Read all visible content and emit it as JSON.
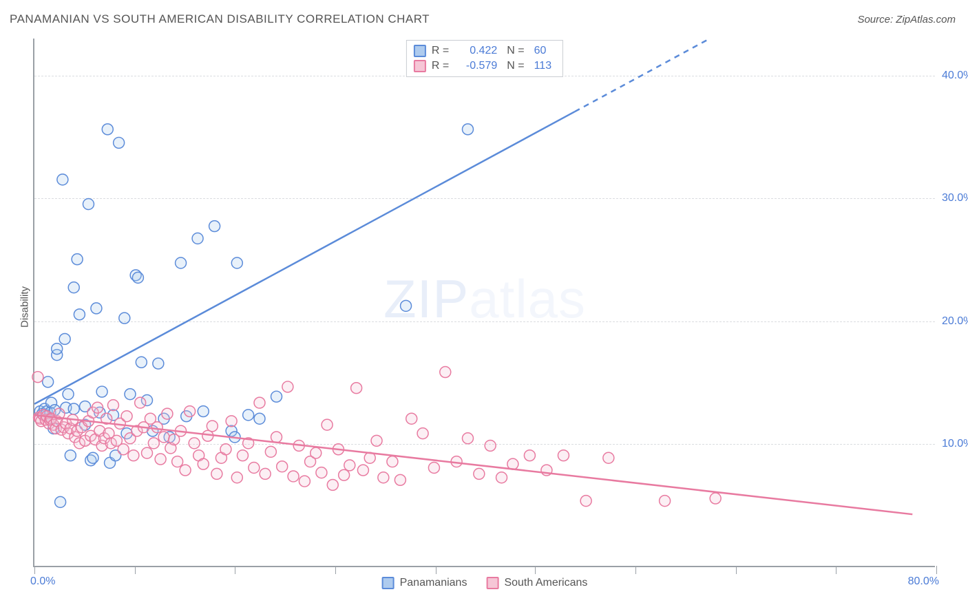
{
  "title": "PANAMANIAN VS SOUTH AMERICAN DISABILITY CORRELATION CHART",
  "source": "Source: ZipAtlas.com",
  "ylabel": "Disability",
  "watermark_ZIP": "ZIP",
  "watermark_atlas": "atlas",
  "xlim": [
    0,
    80
  ],
  "ylim": [
    0,
    43
  ],
  "xlim_min_label": "0.0%",
  "xlim_max_label": "80.0%",
  "yticks": [
    10,
    20,
    30,
    40
  ],
  "ytick_labels": [
    "10.0%",
    "20.0%",
    "30.0%",
    "40.0%"
  ],
  "xtick_positions": [
    0,
    8.9,
    17.8,
    26.7,
    35.6,
    44.4,
    53.3,
    62.2,
    71.1,
    80
  ],
  "grid_color": "#dadce0",
  "axis_color": "#9aa0a6",
  "background_color": "#ffffff",
  "series": [
    {
      "key": "panamanians",
      "label": "Panamanians",
      "color_stroke": "#5b8bd9",
      "color_fill": "#aecbee",
      "R": "0.422",
      "N": "60",
      "trend": {
        "x1": 0,
        "y1": 13.2,
        "x2": 60,
        "y2": 43.0,
        "dash_after_x": 48
      },
      "points": [
        [
          0.5,
          12.6
        ],
        [
          0.7,
          12.4
        ],
        [
          0.9,
          12.8
        ],
        [
          1.0,
          12.3
        ],
        [
          1.1,
          12.6
        ],
        [
          1.2,
          15.0
        ],
        [
          1.4,
          12.5
        ],
        [
          1.5,
          13.3
        ],
        [
          1.5,
          12.0
        ],
        [
          1.7,
          11.2
        ],
        [
          1.8,
          12.7
        ],
        [
          2.0,
          17.2
        ],
        [
          2.0,
          17.7
        ],
        [
          2.3,
          5.2
        ],
        [
          2.5,
          31.5
        ],
        [
          2.7,
          18.5
        ],
        [
          2.8,
          12.9
        ],
        [
          3.0,
          14.0
        ],
        [
          3.2,
          9.0
        ],
        [
          3.5,
          12.8
        ],
        [
          3.8,
          25.0
        ],
        [
          4.0,
          20.5
        ],
        [
          4.5,
          11.5
        ],
        [
          4.8,
          29.5
        ],
        [
          5.0,
          8.6
        ],
        [
          5.2,
          8.8
        ],
        [
          5.5,
          21.0
        ],
        [
          5.8,
          12.5
        ],
        [
          6.0,
          14.2
        ],
        [
          6.5,
          35.6
        ],
        [
          6.7,
          8.4
        ],
        [
          7.0,
          12.3
        ],
        [
          7.2,
          9.0
        ],
        [
          7.5,
          34.5
        ],
        [
          8.0,
          20.2
        ],
        [
          8.2,
          10.8
        ],
        [
          8.5,
          14.0
        ],
        [
          9.0,
          23.7
        ],
        [
          9.2,
          23.5
        ],
        [
          9.5,
          16.6
        ],
        [
          10.0,
          13.5
        ],
        [
          10.5,
          11.0
        ],
        [
          11.0,
          16.5
        ],
        [
          11.5,
          12.0
        ],
        [
          12.0,
          10.5
        ],
        [
          13.0,
          24.7
        ],
        [
          13.5,
          12.2
        ],
        [
          14.5,
          26.7
        ],
        [
          15.0,
          12.6
        ],
        [
          16.0,
          27.7
        ],
        [
          17.5,
          11.0
        ],
        [
          17.8,
          10.5
        ],
        [
          18.0,
          24.7
        ],
        [
          19.0,
          12.3
        ],
        [
          20.0,
          12.0
        ],
        [
          21.5,
          13.8
        ],
        [
          33.0,
          21.2
        ],
        [
          38.5,
          35.6
        ],
        [
          3.5,
          22.7
        ],
        [
          4.5,
          13.0
        ]
      ]
    },
    {
      "key": "south_americans",
      "label": "South Americans",
      "color_stroke": "#e87aa0",
      "color_fill": "#f6c6d6",
      "R": "-0.579",
      "N": "113",
      "trend": {
        "x1": 0,
        "y1": 12.3,
        "x2": 78,
        "y2": 4.2,
        "dash_after_x": null
      },
      "points": [
        [
          0.3,
          15.4
        ],
        [
          0.4,
          12.1
        ],
        [
          0.5,
          12.0
        ],
        [
          0.6,
          11.8
        ],
        [
          0.8,
          12.3
        ],
        [
          1.0,
          11.9
        ],
        [
          1.1,
          12.2
        ],
        [
          1.3,
          11.6
        ],
        [
          1.4,
          11.9
        ],
        [
          1.5,
          12.0
        ],
        [
          1.7,
          11.5
        ],
        [
          1.9,
          11.2
        ],
        [
          2.0,
          11.8
        ],
        [
          2.2,
          12.4
        ],
        [
          2.4,
          11.1
        ],
        [
          2.6,
          11.3
        ],
        [
          2.8,
          11.6
        ],
        [
          3.0,
          10.8
        ],
        [
          3.2,
          11.2
        ],
        [
          3.4,
          11.9
        ],
        [
          3.6,
          10.5
        ],
        [
          3.8,
          11.0
        ],
        [
          4.0,
          10.0
        ],
        [
          4.2,
          11.3
        ],
        [
          4.5,
          10.2
        ],
        [
          4.8,
          11.8
        ],
        [
          5.0,
          10.6
        ],
        [
          5.2,
          12.5
        ],
        [
          5.4,
          10.3
        ],
        [
          5.6,
          12.9
        ],
        [
          5.8,
          11.0
        ],
        [
          6.0,
          9.8
        ],
        [
          6.2,
          10.4
        ],
        [
          6.4,
          12.0
        ],
        [
          6.6,
          10.8
        ],
        [
          6.8,
          10.0
        ],
        [
          7.0,
          13.1
        ],
        [
          7.3,
          10.2
        ],
        [
          7.6,
          11.6
        ],
        [
          7.9,
          9.5
        ],
        [
          8.2,
          12.2
        ],
        [
          8.5,
          10.4
        ],
        [
          8.8,
          9.0
        ],
        [
          9.1,
          11.0
        ],
        [
          9.4,
          13.3
        ],
        [
          9.7,
          11.3
        ],
        [
          10.0,
          9.2
        ],
        [
          10.3,
          12.0
        ],
        [
          10.6,
          10.0
        ],
        [
          10.9,
          11.3
        ],
        [
          11.2,
          8.7
        ],
        [
          11.5,
          10.5
        ],
        [
          11.8,
          12.4
        ],
        [
          12.1,
          9.6
        ],
        [
          12.4,
          10.3
        ],
        [
          12.7,
          8.5
        ],
        [
          13.0,
          11.0
        ],
        [
          13.4,
          7.8
        ],
        [
          13.8,
          12.6
        ],
        [
          14.2,
          10.0
        ],
        [
          14.6,
          9.0
        ],
        [
          15.0,
          8.3
        ],
        [
          15.4,
          10.6
        ],
        [
          15.8,
          11.4
        ],
        [
          16.2,
          7.5
        ],
        [
          16.6,
          8.8
        ],
        [
          17.0,
          9.5
        ],
        [
          17.5,
          11.8
        ],
        [
          18.0,
          7.2
        ],
        [
          18.5,
          9.0
        ],
        [
          19.0,
          10.0
        ],
        [
          19.5,
          8.0
        ],
        [
          20.0,
          13.3
        ],
        [
          20.5,
          7.5
        ],
        [
          21.0,
          9.3
        ],
        [
          21.5,
          10.5
        ],
        [
          22.0,
          8.1
        ],
        [
          22.5,
          14.6
        ],
        [
          23.0,
          7.3
        ],
        [
          23.5,
          9.8
        ],
        [
          24.0,
          6.9
        ],
        [
          24.5,
          8.5
        ],
        [
          25.0,
          9.2
        ],
        [
          25.5,
          7.6
        ],
        [
          26.0,
          11.5
        ],
        [
          26.5,
          6.6
        ],
        [
          27.0,
          9.5
        ],
        [
          27.5,
          7.4
        ],
        [
          28.0,
          8.2
        ],
        [
          28.6,
          14.5
        ],
        [
          29.2,
          7.8
        ],
        [
          29.8,
          8.8
        ],
        [
          30.4,
          10.2
        ],
        [
          31.0,
          7.2
        ],
        [
          31.8,
          8.5
        ],
        [
          32.5,
          7.0
        ],
        [
          33.5,
          12.0
        ],
        [
          34.5,
          10.8
        ],
        [
          35.5,
          8.0
        ],
        [
          36.5,
          15.8
        ],
        [
          37.5,
          8.5
        ],
        [
          38.5,
          10.4
        ],
        [
          39.5,
          7.5
        ],
        [
          40.5,
          9.8
        ],
        [
          41.5,
          7.2
        ],
        [
          42.5,
          8.3
        ],
        [
          44.0,
          9.0
        ],
        [
          45.5,
          7.8
        ],
        [
          47.0,
          9.0
        ],
        [
          49.0,
          5.3
        ],
        [
          51.0,
          8.8
        ],
        [
          56.0,
          5.3
        ],
        [
          60.5,
          5.5
        ]
      ]
    }
  ],
  "legend": {
    "R_label": "R =",
    "N_label": "N ="
  },
  "marker_radius": 8
}
